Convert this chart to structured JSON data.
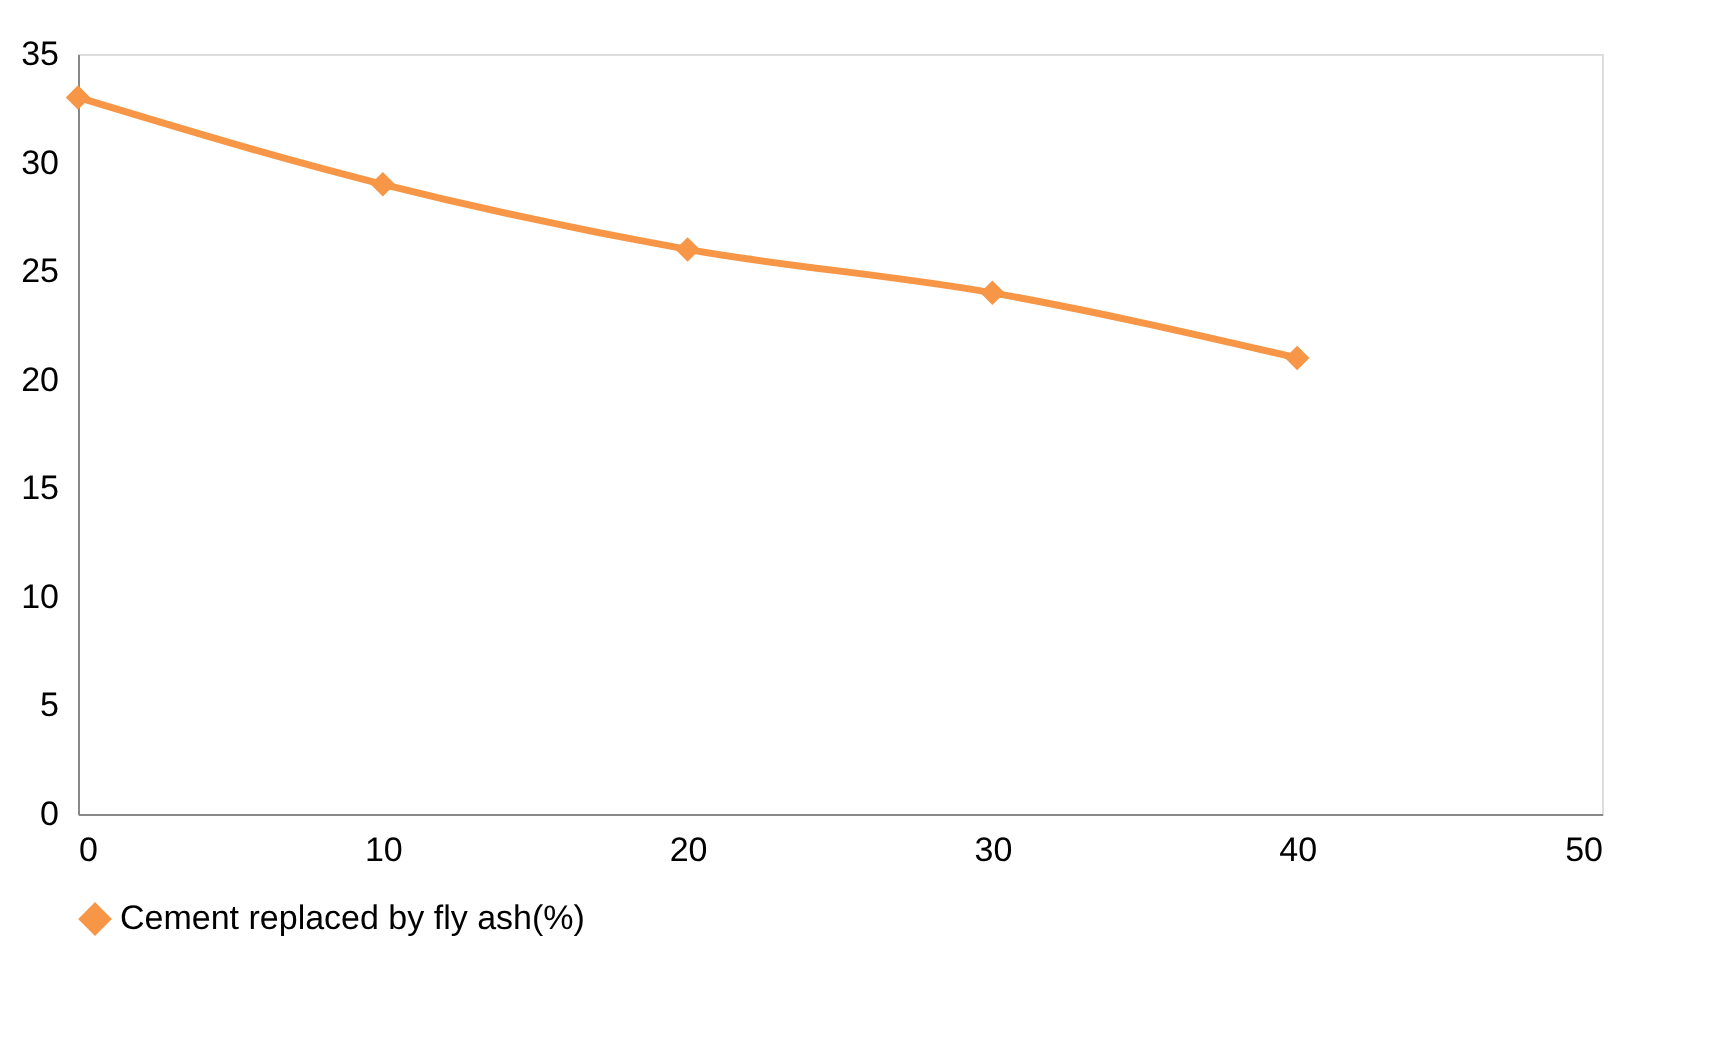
{
  "chart_data": {
    "type": "line",
    "x": [
      0,
      10,
      20,
      30,
      40
    ],
    "series": [
      {
        "name": "Cement replaced by fly ash(%)",
        "color": "#f79646",
        "values": [
          33,
          29,
          26,
          24,
          21
        ]
      }
    ],
    "xlim": [
      0,
      50
    ],
    "xticks": [
      0,
      10,
      20,
      30,
      40,
      50
    ],
    "ylim": [
      0,
      35
    ],
    "yticks": [
      0,
      5,
      10,
      15,
      20,
      25,
      30,
      35
    ],
    "grid": false,
    "legend": "bottom",
    "marker": "diamond",
    "line_style": "solid"
  }
}
